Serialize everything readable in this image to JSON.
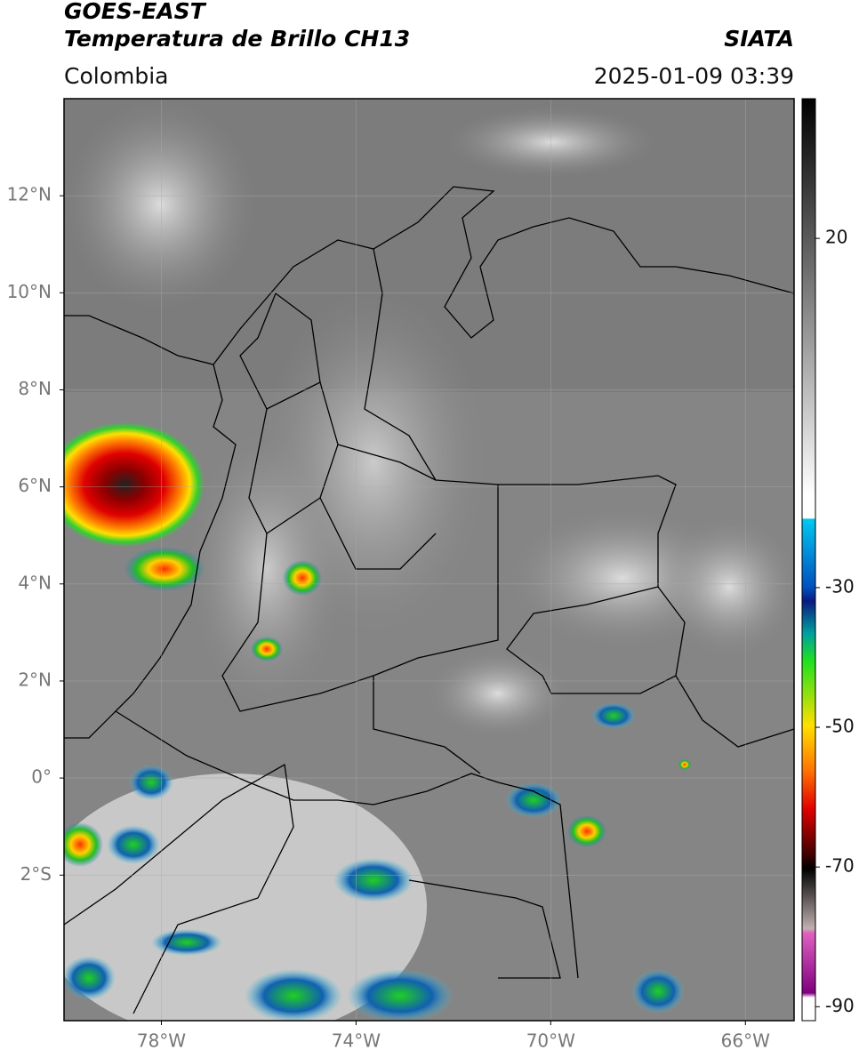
{
  "header": {
    "title": "GOES-EAST",
    "subtitle": "Temperatura de Brillo CH13",
    "source": "SIATA",
    "region": "Colombia",
    "timestamp": "2025-01-09 03:39"
  },
  "map": {
    "lon_lim": [
      -80,
      -65
    ],
    "lat_lim": [
      -5,
      14
    ],
    "lon_ticks": [
      {
        "value": -78,
        "label": "78°W"
      },
      {
        "value": -74,
        "label": "74°W"
      },
      {
        "value": -70,
        "label": "70°W"
      },
      {
        "value": -66,
        "label": "66°W"
      }
    ],
    "lat_ticks": [
      {
        "value": 12,
        "label": "12°N"
      },
      {
        "value": 10,
        "label": "10°N"
      },
      {
        "value": 8,
        "label": "8°N"
      },
      {
        "value": 6,
        "label": "6°N"
      },
      {
        "value": 4,
        "label": "4°N"
      },
      {
        "value": 2,
        "label": "2°N"
      },
      {
        "value": 0,
        "label": "0°"
      },
      {
        "value": -2,
        "label": "2°S"
      }
    ],
    "grid": true
  },
  "colorbar": {
    "lim": [
      -92,
      40
    ],
    "ticks": [
      20,
      -30,
      -50,
      -70,
      -90
    ]
  }
}
